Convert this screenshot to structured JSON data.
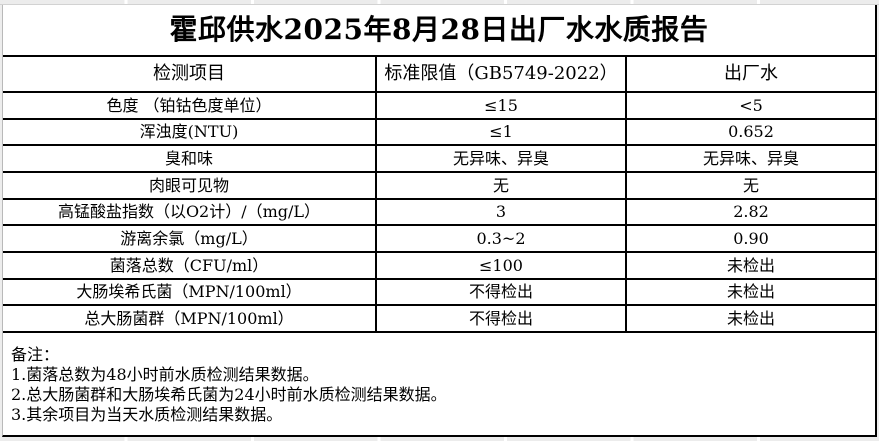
{
  "report": {
    "title": "霍邱供水2025年8月28日出厂水水质报告"
  },
  "table": {
    "headers": [
      "检测项目",
      "标准限值（GB5749-2022）",
      "出厂水"
    ],
    "rows": [
      {
        "item": "色度 （铂钴色度单位）",
        "limit": "≤15",
        "value": "<5"
      },
      {
        "item": "浑浊度(NTU)",
        "limit": "≤1",
        "value": "0.652"
      },
      {
        "item": "臭和味",
        "limit": "无异味、异臭",
        "value": "无异味、异臭"
      },
      {
        "item": "肉眼可见物",
        "limit": "无",
        "value": "无"
      },
      {
        "item": "高锰酸盐指数（以O2计）/（mg/L）",
        "limit": "3",
        "value": "2.82"
      },
      {
        "item": "游离余氯（mg/L）",
        "limit": "0.3~2",
        "value": "0.90"
      },
      {
        "item": "菌落总数（CFU/ml）",
        "limit": "≤100",
        "value": "未检出"
      },
      {
        "item": "大肠埃希氏菌（MPN/100ml）",
        "limit": "不得检出",
        "value": "未检出"
      },
      {
        "item": "总大肠菌群（MPN/100ml）",
        "limit": "不得检出",
        "value": "未检出"
      }
    ]
  },
  "notes": {
    "label": "备注：",
    "items": [
      "1.菌落总数为48小时前水质检测结果数据。",
      "2.总大肠菌群和大肠埃希氏菌为24小时前水质检测结果数据。",
      "3.其余项目为当天水质检测结果数据。"
    ]
  },
  "colors": {
    "table_border": "#000000",
    "sheet_background": "#ffffff",
    "grid_background": "#ececec"
  }
}
